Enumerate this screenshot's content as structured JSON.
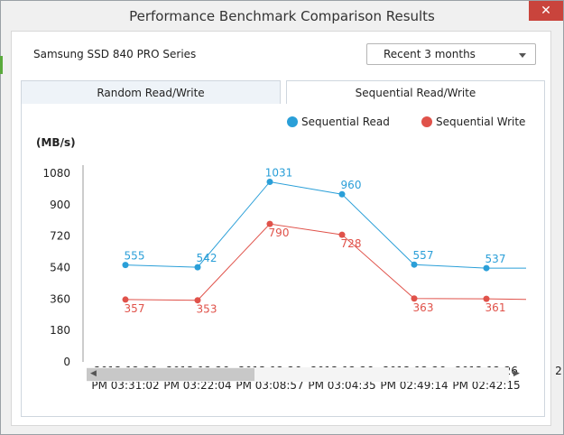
{
  "window": {
    "title": "Performance Benchmark Comparison Results",
    "close_label": "✕"
  },
  "header": {
    "model": "Samsung SSD 840 PRO Series",
    "period_selected": "Recent 3 months"
  },
  "tabs": [
    {
      "label": "Random Read/Write",
      "active": false
    },
    {
      "label": "Sequential Read/Write",
      "active": true
    }
  ],
  "icons": {
    "dropdown": "chevron-down-icon",
    "scroll_left": "arrow-left-icon",
    "scroll_right": "arrow-right-icon",
    "close": "close-icon"
  },
  "chart_data": {
    "type": "line",
    "ylabel": "(MB/s)",
    "ylim": [
      0,
      1080
    ],
    "yticks": [
      0,
      180,
      360,
      540,
      720,
      900,
      1080
    ],
    "x": [
      [
        "2013-12-26",
        "PM 03:31:02"
      ],
      [
        "2013-12-26",
        "PM 03:22:04"
      ],
      [
        "2013-12-26",
        "PM 03:08:57"
      ],
      [
        "2013-12-26",
        "PM 03:04:35"
      ],
      [
        "2013-12-26",
        "PM 02:49:14"
      ],
      [
        "2013-12-26",
        "PM 02:42:15"
      ],
      [
        "2",
        ""
      ]
    ],
    "series": [
      {
        "name": "Sequential Read",
        "color": "#2a9fd8",
        "values": [
          555,
          542,
          1031,
          960,
          557,
          537,
          537
        ]
      },
      {
        "name": "Sequential Write",
        "color": "#e0524a",
        "values": [
          357,
          353,
          790,
          728,
          363,
          361,
          358
        ]
      }
    ],
    "data_labels_shown": 6,
    "grid": false
  }
}
